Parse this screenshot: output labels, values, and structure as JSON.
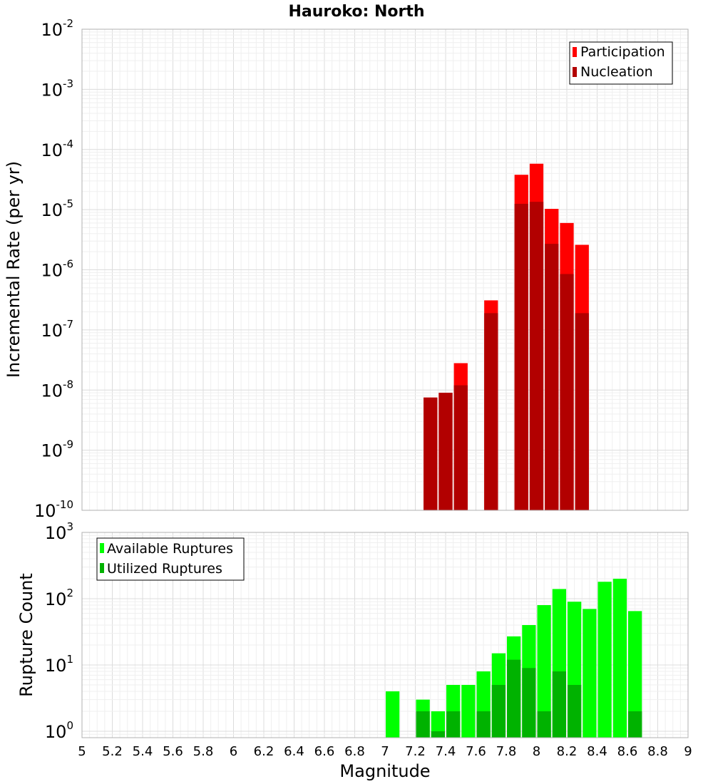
{
  "chart_data": [
    {
      "type": "bar",
      "title": "Hauroko: North",
      "xlabel": "",
      "ylabel": "Incremental Rate (per yr)",
      "yscale": "log",
      "xlim": [
        5,
        9
      ],
      "ylim": [
        1e-10,
        0.01
      ],
      "grid": true,
      "legend_position": "top-right",
      "ytick_labels": [
        {
          "base": "10",
          "exp": "-10"
        },
        {
          "base": "10",
          "exp": "-9"
        },
        {
          "base": "10",
          "exp": "-8"
        },
        {
          "base": "10",
          "exp": "-7"
        },
        {
          "base": "10",
          "exp": "-6"
        },
        {
          "base": "10",
          "exp": "-5"
        },
        {
          "base": "10",
          "exp": "-4"
        },
        {
          "base": "10",
          "exp": "-3"
        },
        {
          "base": "10",
          "exp": "-2"
        }
      ],
      "series": [
        {
          "name": "Participation",
          "color": "#ff0000",
          "x": [
            7.3,
            7.4,
            7.5,
            7.7,
            7.9,
            8.0,
            8.1,
            8.2,
            8.3
          ],
          "values": [
            7.5e-09,
            9e-09,
            2.8e-08,
            3.1e-07,
            3.8e-05,
            5.8e-05,
            1.03e-05,
            6e-06,
            2.6e-06
          ]
        },
        {
          "name": "Nucleation",
          "color": "#b20000",
          "x": [
            7.3,
            7.4,
            7.5,
            7.7,
            7.9,
            8.0,
            8.1,
            8.2,
            8.3
          ],
          "values": [
            7.5e-09,
            9e-09,
            1.2e-08,
            1.9e-07,
            1.25e-05,
            1.35e-05,
            2.7e-06,
            8.5e-07,
            1.9e-07
          ]
        }
      ]
    },
    {
      "type": "bar",
      "title": "",
      "xlabel": "Magnitude",
      "ylabel": "Rupture Count",
      "yscale": "log",
      "xlim": [
        5,
        9
      ],
      "ylim": [
        0.8,
        1000
      ],
      "grid": true,
      "legend_position": "top-left",
      "xticks": [
        "5",
        "5.2",
        "5.4",
        "5.6",
        "5.8",
        "6",
        "6.2",
        "6.4",
        "6.6",
        "6.8",
        "7",
        "7.2",
        "7.4",
        "7.6",
        "7.8",
        "8",
        "8.2",
        "8.4",
        "8.6",
        "8.8",
        "9"
      ],
      "ytick_labels": [
        {
          "base": "10",
          "exp": "0"
        },
        {
          "base": "10",
          "exp": "1"
        },
        {
          "base": "10",
          "exp": "2"
        },
        {
          "base": "10",
          "exp": "3"
        }
      ],
      "series": [
        {
          "name": "Available Ruptures",
          "color": "#00ff00",
          "x": [
            7.05,
            7.25,
            7.35,
            7.45,
            7.55,
            7.65,
            7.75,
            7.85,
            7.95,
            8.05,
            8.15,
            8.25,
            8.35,
            8.45,
            8.55,
            8.65
          ],
          "values": [
            4,
            3,
            2,
            5,
            5,
            8,
            15,
            27,
            40,
            80,
            140,
            90,
            70,
            180,
            200,
            65
          ]
        },
        {
          "name": "Utilized Ruptures",
          "color": "#00b200",
          "x": [
            7.25,
            7.35,
            7.45,
            7.65,
            7.75,
            7.85,
            7.95,
            8.05,
            8.15,
            8.25,
            8.65
          ],
          "values": [
            2,
            1,
            2,
            2,
            5,
            12,
            9,
            2,
            8,
            5,
            2
          ]
        }
      ]
    }
  ]
}
